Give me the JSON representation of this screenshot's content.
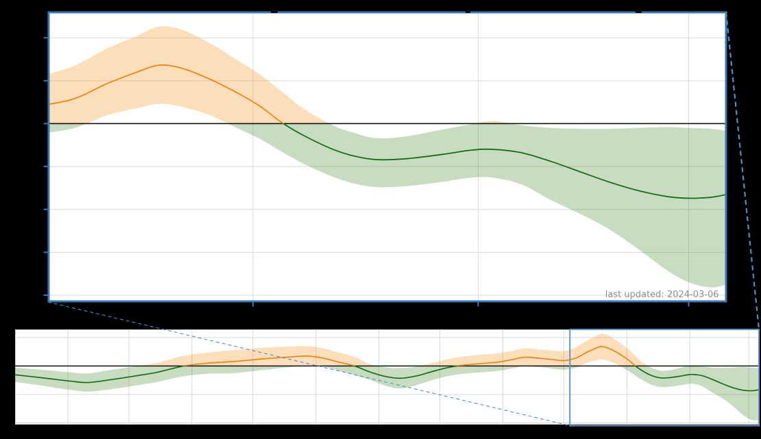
{
  "annotation": {
    "last_updated": "last updated: 2024-03-06"
  },
  "colors": {
    "background": "#000000",
    "plot_background": "#ffffff",
    "gridline": "#d8d8d8",
    "overview_spine": "#d0d0d0",
    "zero_line": "#111111",
    "positive_line": "#ee8512",
    "positive_band": "rgba(245,145,30,0.30)",
    "negative_line": "#156f15",
    "negative_band": "rgba(70,140,50,0.30)",
    "inset_border": "#3579b8",
    "zoom_rect": "#5b97cf",
    "connector": "#4a8fc7",
    "tick_mark": "#3579b8",
    "title_descender_mark": "#0a0a0a",
    "last_updated_text": "#8f8f8f"
  },
  "chart_data": {
    "type": "area",
    "subtype": "value line with confidence band, orange above zero and green below zero",
    "panels": [
      {
        "name": "main-zoom-inset",
        "x_day_range": [
          273,
          366
        ],
        "x_gridline_days": [
          301,
          332,
          361
        ],
        "x_gridline_meaning": [
          "2024-01-01",
          "2024-02-01",
          "2024-03-01"
        ],
        "ylim": [
          -2.06,
          1.285
        ],
        "y_gridline_values": [
          1.0,
          0.5,
          0.0,
          -0.5,
          -1.0,
          -1.5,
          -2.0
        ],
        "zero_baseline": 0
      },
      {
        "name": "overview-strip",
        "x_day_range": [
          0,
          366
        ],
        "x_gridline_days": [
          26,
          56,
          87,
          117,
          148,
          179,
          209,
          240,
          270,
          301,
          332,
          361
        ],
        "x_gridline_meaning": [
          "2023-04-01",
          "2023-05-01",
          "2023-06-01",
          "2023-07-01",
          "2023-08-01",
          "2023-09-01",
          "2023-10-01",
          "2023-11-01",
          "2023-12-01",
          "2024-01-01",
          "2024-02-01",
          "2024-03-01"
        ],
        "ylim": [
          -2.06,
          1.285
        ],
        "y_gridline_values": [
          1.0,
          0.0,
          -1.0,
          -2.0
        ],
        "zero_baseline": 0,
        "zoom_region_day_range": [
          273,
          366
        ]
      }
    ],
    "x_unit": "days (day 0 = 2023-03-06, day 366 = 2024-03-06, per last-updated stamp)",
    "series": {
      "name": "value with confidence interval",
      "columns": [
        "day",
        "value",
        "upper",
        "lower"
      ],
      "rows": [
        [
          0,
          -0.31,
          -0.06,
          -0.56
        ],
        [
          14,
          -0.42,
          -0.14,
          -0.7
        ],
        [
          27,
          -0.53,
          -0.22,
          -0.84
        ],
        [
          36,
          -0.58,
          -0.26,
          -0.9
        ],
        [
          48,
          -0.47,
          -0.13,
          -0.81
        ],
        [
          60,
          -0.34,
          0.0,
          -0.68
        ],
        [
          70,
          -0.22,
          0.12,
          -0.56
        ],
        [
          83,
          0.0,
          0.36,
          -0.36
        ],
        [
          95,
          0.1,
          0.47,
          -0.27
        ],
        [
          108,
          0.16,
          0.56,
          -0.25
        ],
        [
          122,
          0.25,
          0.64,
          -0.14
        ],
        [
          134,
          0.31,
          0.68,
          -0.05
        ],
        [
          143,
          0.35,
          0.7,
          0.0
        ],
        [
          150,
          0.3,
          0.64,
          0.02
        ],
        [
          158,
          0.16,
          0.5,
          -0.14
        ],
        [
          167,
          0.0,
          0.32,
          -0.32
        ],
        [
          175,
          -0.22,
          0.06,
          -0.5
        ],
        [
          183,
          -0.38,
          -0.05,
          -0.71
        ],
        [
          190,
          -0.43,
          -0.07,
          -0.79
        ],
        [
          198,
          -0.34,
          -0.02,
          -0.66
        ],
        [
          206,
          -0.18,
          0.12,
          -0.48
        ],
        [
          214,
          -0.04,
          0.26,
          -0.34
        ],
        [
          222,
          0.04,
          0.34,
          -0.26
        ],
        [
          230,
          0.09,
          0.4,
          -0.22
        ],
        [
          238,
          0.14,
          0.45,
          -0.17
        ],
        [
          245,
          0.23,
          0.54,
          -0.08
        ],
        [
          251,
          0.31,
          0.62,
          -0.01
        ],
        [
          258,
          0.27,
          0.58,
          -0.04
        ],
        [
          264,
          0.23,
          0.55,
          -0.09
        ],
        [
          270,
          0.19,
          0.52,
          -0.13
        ],
        [
          276,
          0.28,
          0.66,
          -0.06
        ],
        [
          281,
          0.47,
          0.88,
          0.1
        ],
        [
          285,
          0.6,
          1.02,
          0.18
        ],
        [
          288,
          0.68,
          1.13,
          0.23
        ],
        [
          291,
          0.65,
          1.1,
          0.2
        ],
        [
          295,
          0.52,
          0.94,
          0.1
        ],
        [
          299,
          0.35,
          0.73,
          -0.06
        ],
        [
          302,
          0.2,
          0.57,
          -0.18
        ],
        [
          305,
          0.01,
          0.37,
          -0.33
        ],
        [
          308,
          -0.14,
          0.17,
          -0.47
        ],
        [
          312,
          -0.3,
          -0.02,
          -0.62
        ],
        [
          315,
          -0.38,
          -0.11,
          -0.7
        ],
        [
          318,
          -0.42,
          -0.17,
          -0.74
        ],
        [
          322,
          -0.41,
          -0.15,
          -0.73
        ],
        [
          327,
          -0.36,
          -0.07,
          -0.68
        ],
        [
          331,
          -0.31,
          -0.01,
          -0.63
        ],
        [
          334,
          -0.3,
          0.03,
          -0.63
        ],
        [
          338,
          -0.34,
          -0.02,
          -0.71
        ],
        [
          342,
          -0.44,
          -0.05,
          -0.89
        ],
        [
          346,
          -0.56,
          -0.06,
          -1.05
        ],
        [
          350,
          -0.68,
          -0.06,
          -1.23
        ],
        [
          354,
          -0.78,
          -0.05,
          -1.46
        ],
        [
          358,
          -0.85,
          -0.04,
          -1.71
        ],
        [
          361,
          -0.87,
          -0.05,
          -1.85
        ],
        [
          364,
          -0.86,
          -0.06,
          -1.91
        ],
        [
          366,
          -0.83,
          -0.08,
          -1.88
        ]
      ]
    }
  }
}
